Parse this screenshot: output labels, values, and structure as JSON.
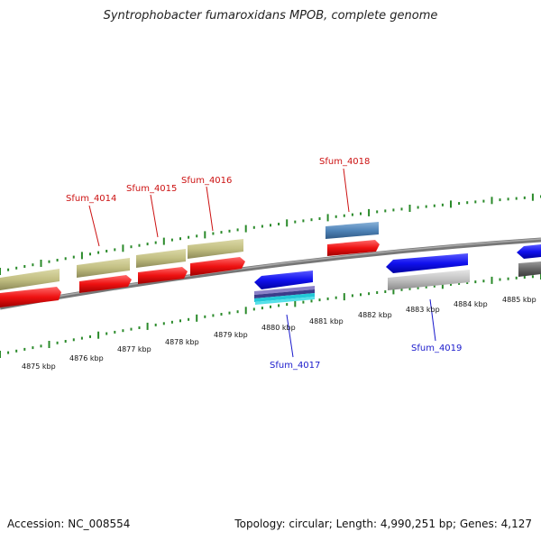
{
  "title": "Syntrophobacter fumaroxidans MPOB, complete genome",
  "footer": {
    "accession": "Accession: NC_008554",
    "info": "Topology: circular; Length: 4,990,251 bp; Genes: 4,127"
  },
  "colors": {
    "backbone": "#888888",
    "tick": "#2a8a2a",
    "forward_label": "#cc1111",
    "reverse_label": "#1a1acc",
    "gene_red": "#ee1111",
    "gene_khaki": "#c2bf82",
    "gene_blue": "#1111ee",
    "gene_steel": "#4f84b8",
    "gene_grey": "#c0c0c0",
    "gene_dark": "#666666"
  },
  "kbp_labels": [
    "4875 kbp",
    "4876 kbp",
    "4877 kbp",
    "4878 kbp",
    "4879 kbp",
    "4880 kbp",
    "4881 kbp",
    "4882 kbp",
    "4883 kbp",
    "4884 kbp",
    "4885 kbp"
  ],
  "gene_labels": {
    "g4014": "Sfum_4014",
    "g4015": "Sfum_4015",
    "g4016": "Sfum_4016",
    "g4017": "Sfum_4017",
    "g4018": "Sfum_4018",
    "g4019": "Sfum_4019"
  }
}
